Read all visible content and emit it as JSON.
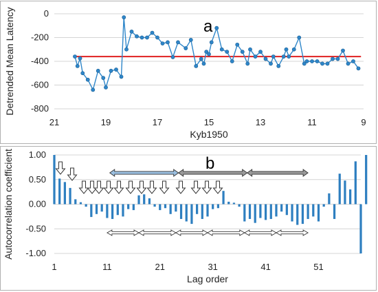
{
  "colors": {
    "series": "#2e86c9",
    "marker": "#2e86c9",
    "trend": "#e02020",
    "bars": "#2e7fc0",
    "grid": "#d4d4d4",
    "blue_arrow": "#9bbfe0",
    "gray_arrow": "#9a9a9a"
  },
  "chart_data": [
    {
      "type": "line",
      "panel_label": "a",
      "xlabel": "Kyb1950",
      "ylabel": "Detrended Mean Latency",
      "xlim": [
        21,
        9
      ],
      "ylim": [
        -800,
        0
      ],
      "x_reversed": true,
      "xticks": [
        "21",
        "19",
        "17",
        "15",
        "13",
        "11",
        "9"
      ],
      "yticks": [
        "0",
        "-200",
        "-400",
        "-600",
        "-800"
      ],
      "grid": "horizontal",
      "reference_line": {
        "y": -360
      },
      "series": [
        {
          "x": [
            20.2,
            20.1,
            20.0,
            19.9,
            19.7,
            19.5,
            19.3,
            19.1,
            19.0,
            18.8,
            18.6,
            18.4,
            18.3,
            18.2,
            18.0,
            17.8,
            17.6,
            17.4,
            17.2,
            17.0,
            16.8,
            16.6,
            16.4,
            16.2,
            15.9,
            15.7,
            15.5,
            15.3,
            15.2,
            15.1,
            15.0,
            14.9,
            14.7,
            14.5,
            14.3,
            14.1,
            13.9,
            13.7,
            13.5,
            13.4,
            13.2,
            13.0,
            12.8,
            12.6,
            12.5,
            12.3,
            12.1,
            12.0,
            11.9,
            11.7,
            11.5,
            11.3,
            11.2,
            11.0,
            10.8,
            10.6,
            10.4,
            10.2,
            10.0,
            9.8,
            9.6,
            9.4,
            9.2
          ],
          "y": [
            -360,
            -440,
            -375,
            -500,
            -555,
            -640,
            -480,
            -540,
            -620,
            -480,
            -470,
            -530,
            -30,
            -300,
            -150,
            -190,
            -200,
            -200,
            -160,
            -200,
            -250,
            -240,
            -365,
            -240,
            -290,
            -220,
            -440,
            -380,
            -420,
            -320,
            -340,
            -240,
            -120,
            -300,
            -320,
            -400,
            -260,
            -320,
            -420,
            -300,
            -360,
            -320,
            -380,
            -420,
            -360,
            -440,
            -360,
            -300,
            -360,
            -300,
            -200,
            -420,
            -400,
            -400,
            -400,
            -420,
            -420,
            -380,
            -380,
            -310,
            -420,
            -400,
            -460
          ]
        }
      ]
    },
    {
      "type": "bar",
      "panel_label": "b",
      "xlabel": "Lag order",
      "ylabel": "Autocorrelation coefficient",
      "xlim": [
        1,
        59
      ],
      "ylim": [
        -1.0,
        1.0
      ],
      "xticks": [
        "1",
        "11",
        "21",
        "31",
        "41",
        "51"
      ],
      "yticks": [
        "1.00",
        "0.50",
        "0.00",
        "-0.50",
        "-1.00"
      ],
      "grid": "horizontal",
      "values": [
        1.0,
        0.52,
        0.45,
        0.33,
        0.1,
        0.04,
        -0.05,
        -0.26,
        -0.2,
        -0.15,
        -0.28,
        -0.3,
        -0.22,
        -0.25,
        -0.1,
        -0.12,
        0.18,
        0.2,
        0.12,
        -0.05,
        -0.12,
        -0.08,
        -0.2,
        -0.15,
        -0.3,
        -0.35,
        -0.4,
        -0.2,
        -0.3,
        -0.25,
        -0.1,
        -0.08,
        0.27,
        0.05,
        0.03,
        -0.05,
        -0.35,
        -0.3,
        -0.38,
        -0.28,
        -0.32,
        -0.3,
        -0.25,
        -0.15,
        -0.22,
        -0.35,
        -0.42,
        -0.4,
        -0.3,
        -0.25,
        -0.35,
        -0.05,
        0.22,
        -0.3,
        0.62,
        0.48,
        0.3,
        0.87,
        -1.0,
        1.0
      ]
    }
  ]
}
